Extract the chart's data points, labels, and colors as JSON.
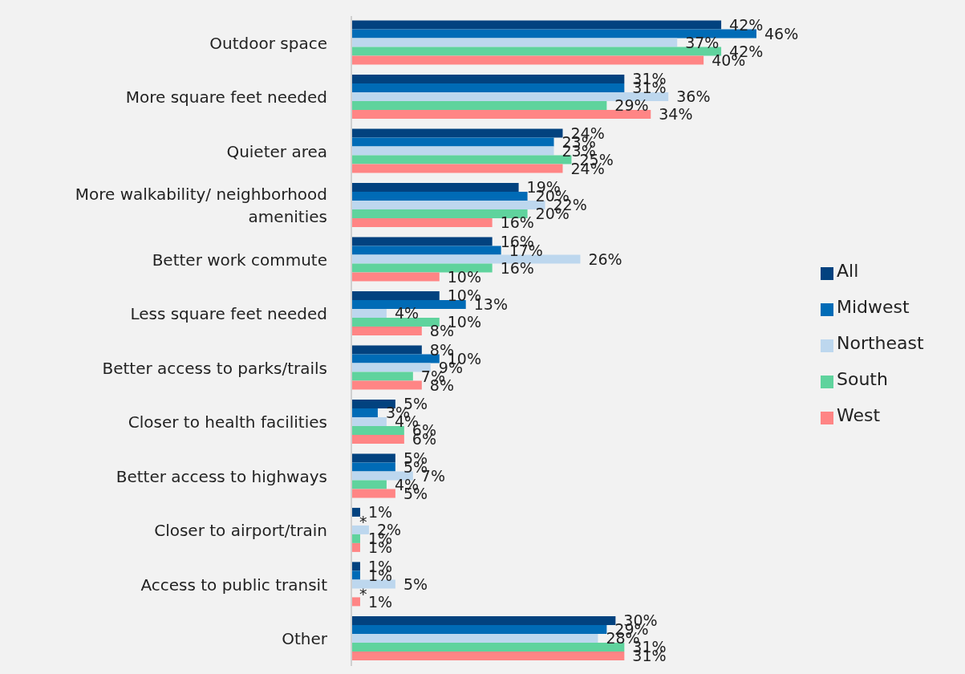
{
  "chart_data": {
    "type": "bar",
    "orientation": "horizontal",
    "legend": "right",
    "categories": [
      "Outdoor space",
      "More square feet needed",
      "Quieter area",
      "More walkability/ neighborhood amenities",
      "Better work commute",
      "Less square feet needed",
      "Better access to parks/trails",
      "Closer to health facilities",
      "Better access to highways",
      "Closer to airport/train",
      "Access to public transit",
      "Other"
    ],
    "series": [
      {
        "name": "All",
        "color": "#02427f",
        "values": [
          42,
          31,
          24,
          19,
          16,
          10,
          8,
          5,
          5,
          1,
          1,
          30
        ],
        "value_labels": [
          "42%",
          "31%",
          "24%",
          "19%",
          "16%",
          "10%",
          "8%",
          "5%",
          "5%",
          "1%",
          "1%",
          "30%"
        ]
      },
      {
        "name": "Midwest",
        "color": "#006bb6",
        "values": [
          46,
          31,
          23,
          20,
          17,
          13,
          10,
          3,
          5,
          null,
          1,
          29
        ],
        "value_labels": [
          "46%",
          "31%",
          "23%",
          "20%",
          "17%",
          "13%",
          "10%",
          "3%",
          "5%",
          "*",
          "1%",
          "29%"
        ]
      },
      {
        "name": "Northeast",
        "color": "#bdd7ee",
        "values": [
          37,
          36,
          23,
          22,
          26,
          4,
          9,
          4,
          7,
          2,
          5,
          28
        ],
        "value_labels": [
          "37%",
          "36%",
          "23%",
          "22%",
          "26%",
          "4%",
          "9%",
          "4%",
          "7%",
          "2%",
          "5%",
          "28%"
        ]
      },
      {
        "name": "South",
        "color": "#5fd39d",
        "values": [
          42,
          29,
          25,
          20,
          16,
          10,
          7,
          6,
          4,
          1,
          null,
          31
        ],
        "value_labels": [
          "42%",
          "29%",
          "25%",
          "20%",
          "16%",
          "10%",
          "7%",
          "6%",
          "4%",
          "1%",
          "*",
          "31%"
        ]
      },
      {
        "name": "West",
        "color": "#ff8585",
        "values": [
          40,
          34,
          24,
          16,
          10,
          8,
          8,
          6,
          5,
          1,
          1,
          31
        ],
        "value_labels": [
          "40%",
          "34%",
          "24%",
          "16%",
          "10%",
          "8%",
          "8%",
          "6%",
          "5%",
          "1%",
          "1%",
          "31%"
        ]
      }
    ]
  }
}
